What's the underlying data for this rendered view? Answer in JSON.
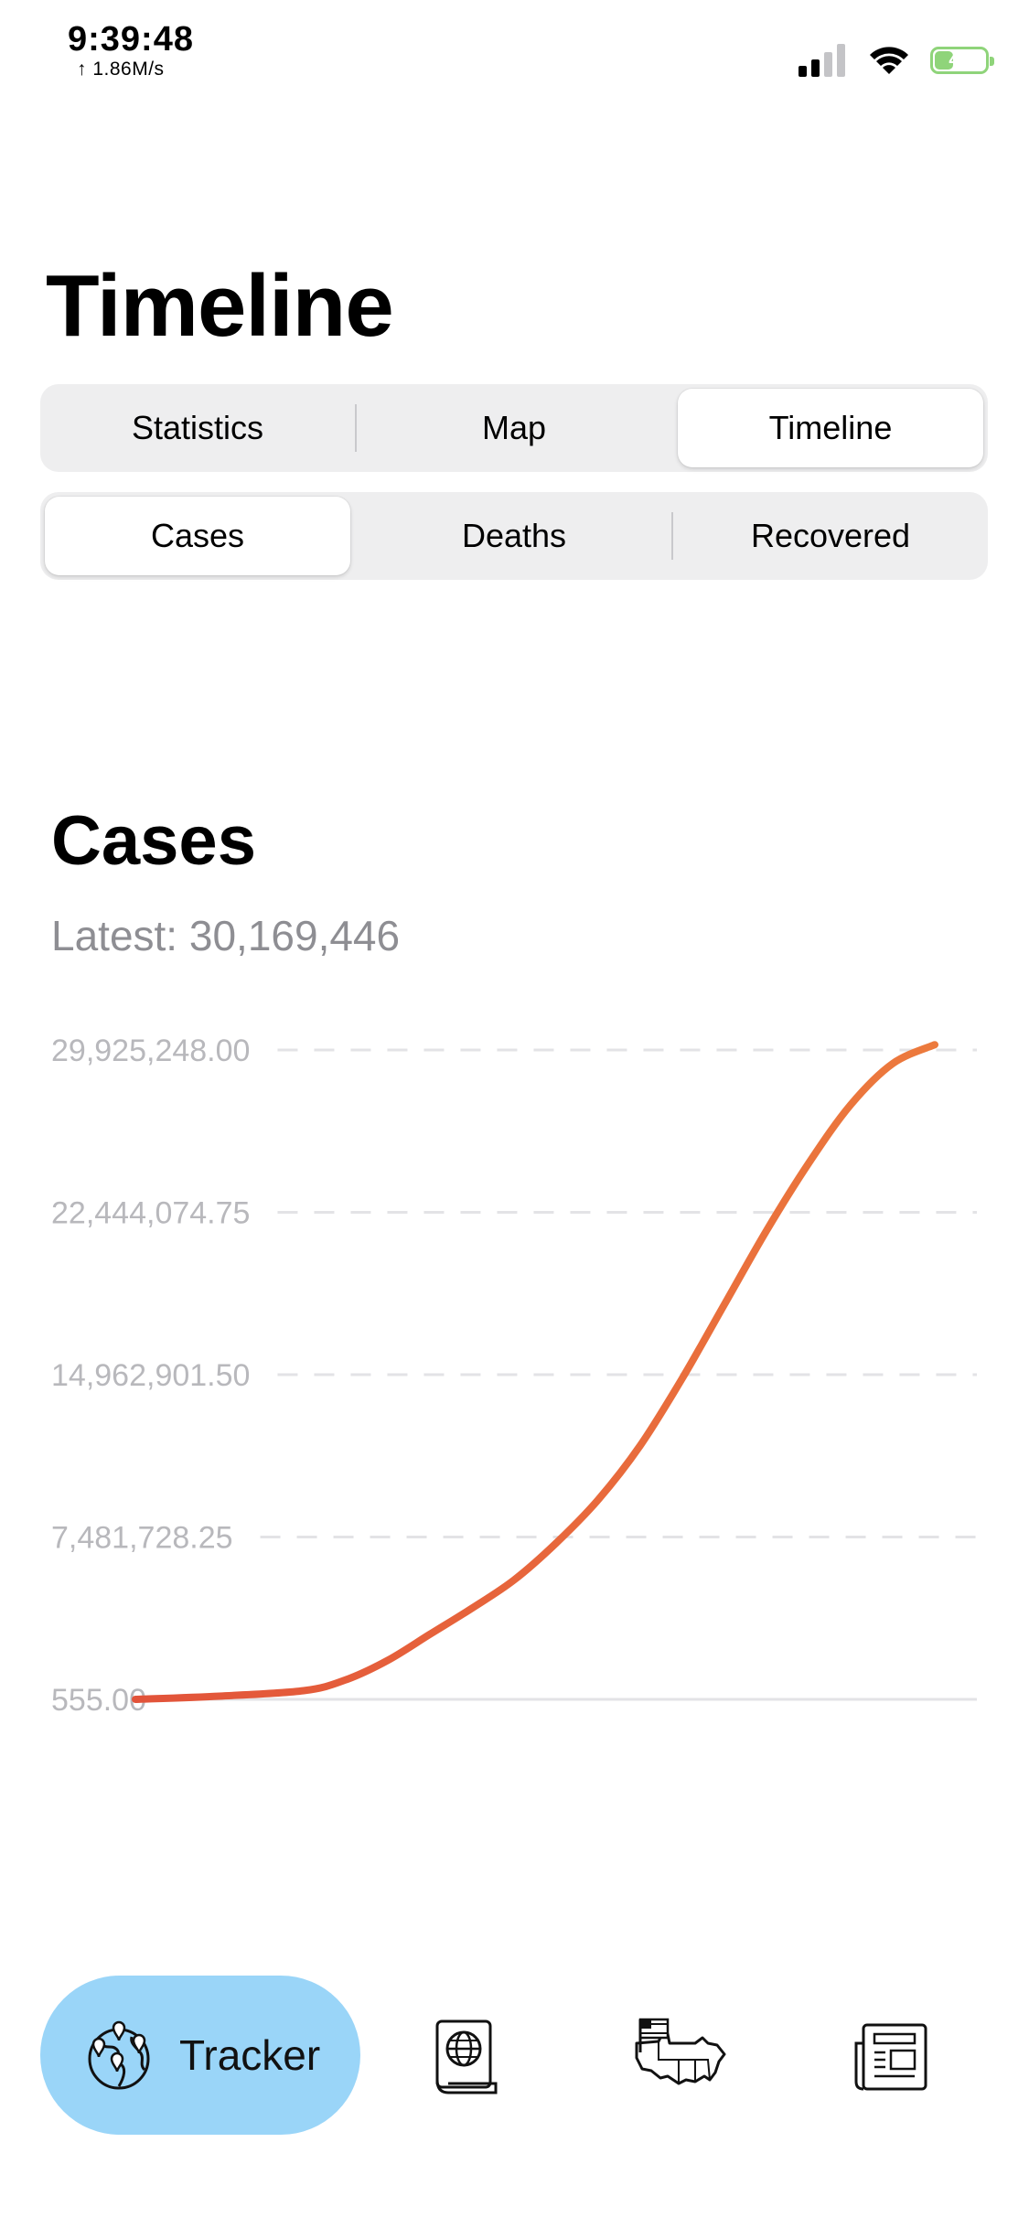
{
  "status_bar": {
    "time": "9:39:48",
    "network_speed": "↑ 1.86M/s",
    "battery_level": "41",
    "battery_percent": 41,
    "signal_icon": "cellular-signal-icon",
    "wifi_icon": "wifi-icon"
  },
  "page": {
    "title": "Timeline"
  },
  "primary_tabs": {
    "items": [
      {
        "label": "Statistics",
        "selected": false
      },
      {
        "label": "Map",
        "selected": false
      },
      {
        "label": "Timeline",
        "selected": true
      }
    ]
  },
  "metric_tabs": {
    "items": [
      {
        "label": "Cases",
        "selected": true
      },
      {
        "label": "Deaths",
        "selected": false
      },
      {
        "label": "Recovered",
        "selected": false
      }
    ]
  },
  "chart_section": {
    "title": "Cases",
    "latest_label": "Latest: 30,169,446"
  },
  "chart_data": {
    "type": "line",
    "title": "Cases",
    "subtitle": "Latest: 30,169,446",
    "ylim": [
      555,
      29925248
    ],
    "y_ticks": [
      555,
      7481728.25,
      14962901.5,
      22444074.75,
      29925248
    ],
    "y_tick_labels": [
      "555.00",
      "7,481,728.25",
      "14,962,901.50",
      "22,444,074.75",
      "29,925,248.00"
    ],
    "grid": "horizontal-dashed",
    "line_color": "#e2533a",
    "line_color_end": "#ec7a3d",
    "series": [
      {
        "points": [
          [
            0.0,
            555
          ],
          [
            0.1,
            150000
          ],
          [
            0.2,
            400000
          ],
          [
            0.25,
            900000
          ],
          [
            0.3,
            1800000
          ],
          [
            0.35,
            3000000
          ],
          [
            0.4,
            4200000
          ],
          [
            0.45,
            5500000
          ],
          [
            0.5,
            7200000
          ],
          [
            0.55,
            9200000
          ],
          [
            0.6,
            11700000
          ],
          [
            0.65,
            14800000
          ],
          [
            0.7,
            18200000
          ],
          [
            0.75,
            21600000
          ],
          [
            0.8,
            24700000
          ],
          [
            0.85,
            27400000
          ],
          [
            0.9,
            29300000
          ],
          [
            0.95,
            30169446
          ]
        ]
      }
    ]
  },
  "tab_bar": {
    "active_label": "Tracker",
    "items": [
      {
        "icon": "globe-pins-icon",
        "label": "Tracker",
        "active": true
      },
      {
        "icon": "passport-icon",
        "active": false
      },
      {
        "icon": "usa-map-icon",
        "active": false
      },
      {
        "icon": "newspaper-icon",
        "active": false
      }
    ]
  }
}
